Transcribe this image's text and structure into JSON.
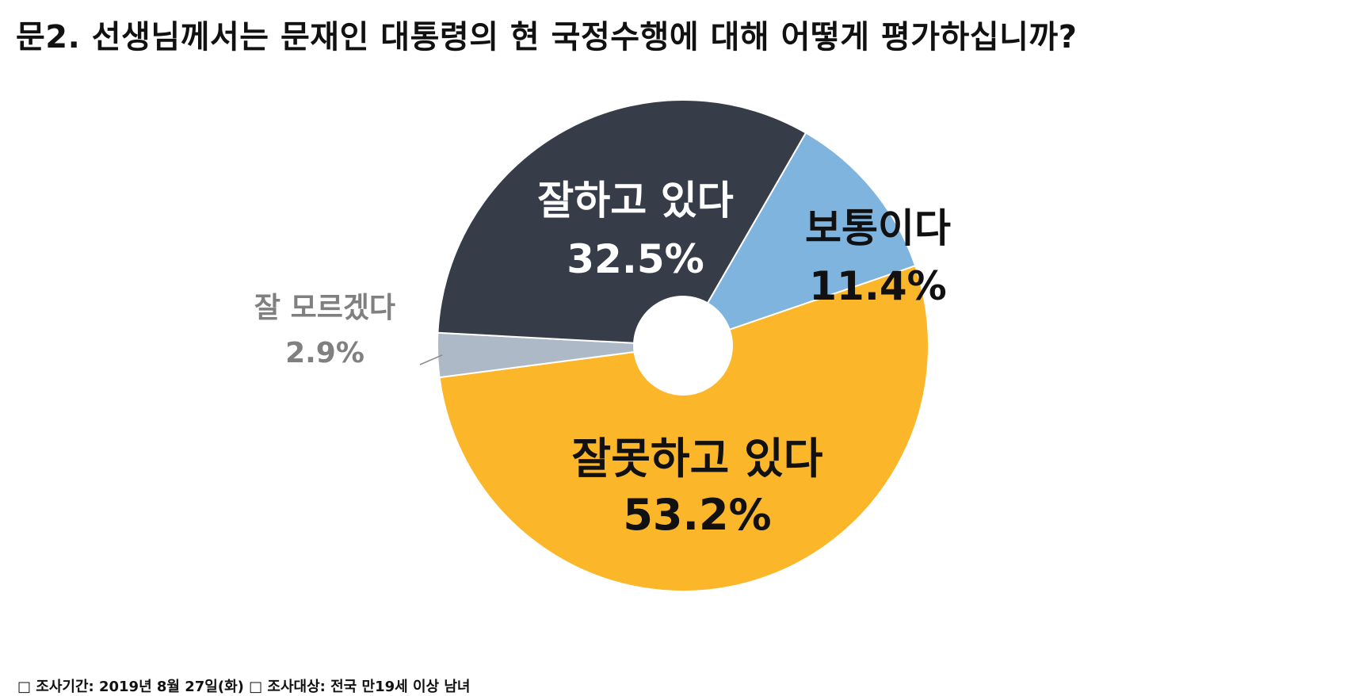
{
  "title": "문2. 선생님께서는 문재인 대통령의 현 국정수행에 대해 어떻게 평가하십니까?",
  "footnote": "□ 조사기간: 2019년 8월 27일(화)   □ 조사대상: 전국 만19세 이상 남녀",
  "chart_data": {
    "type": "pie",
    "donut": true,
    "title": "문2. 선생님께서는 문재인 대통령의 현 국정수행에 대해 어떻게 평가하십니까?",
    "slices": [
      {
        "label": "잘하고 있다",
        "value": 32.5,
        "value_label": "32.5%",
        "color": "#363c48",
        "label_color": "#ffffff"
      },
      {
        "label": "보통이다",
        "value": 11.4,
        "value_label": "11.4%",
        "color": "#7fb4de",
        "label_color": "#111111"
      },
      {
        "label": "잘못하고 있다",
        "value": 53.2,
        "value_label": "53.2%",
        "color": "#fbb62a",
        "label_color": "#111111"
      },
      {
        "label": "잘 모르겠다",
        "value": 2.9,
        "value_label": "2.9%",
        "color": "#adb9c6",
        "label_color": "#808080"
      }
    ],
    "legend": "none"
  }
}
